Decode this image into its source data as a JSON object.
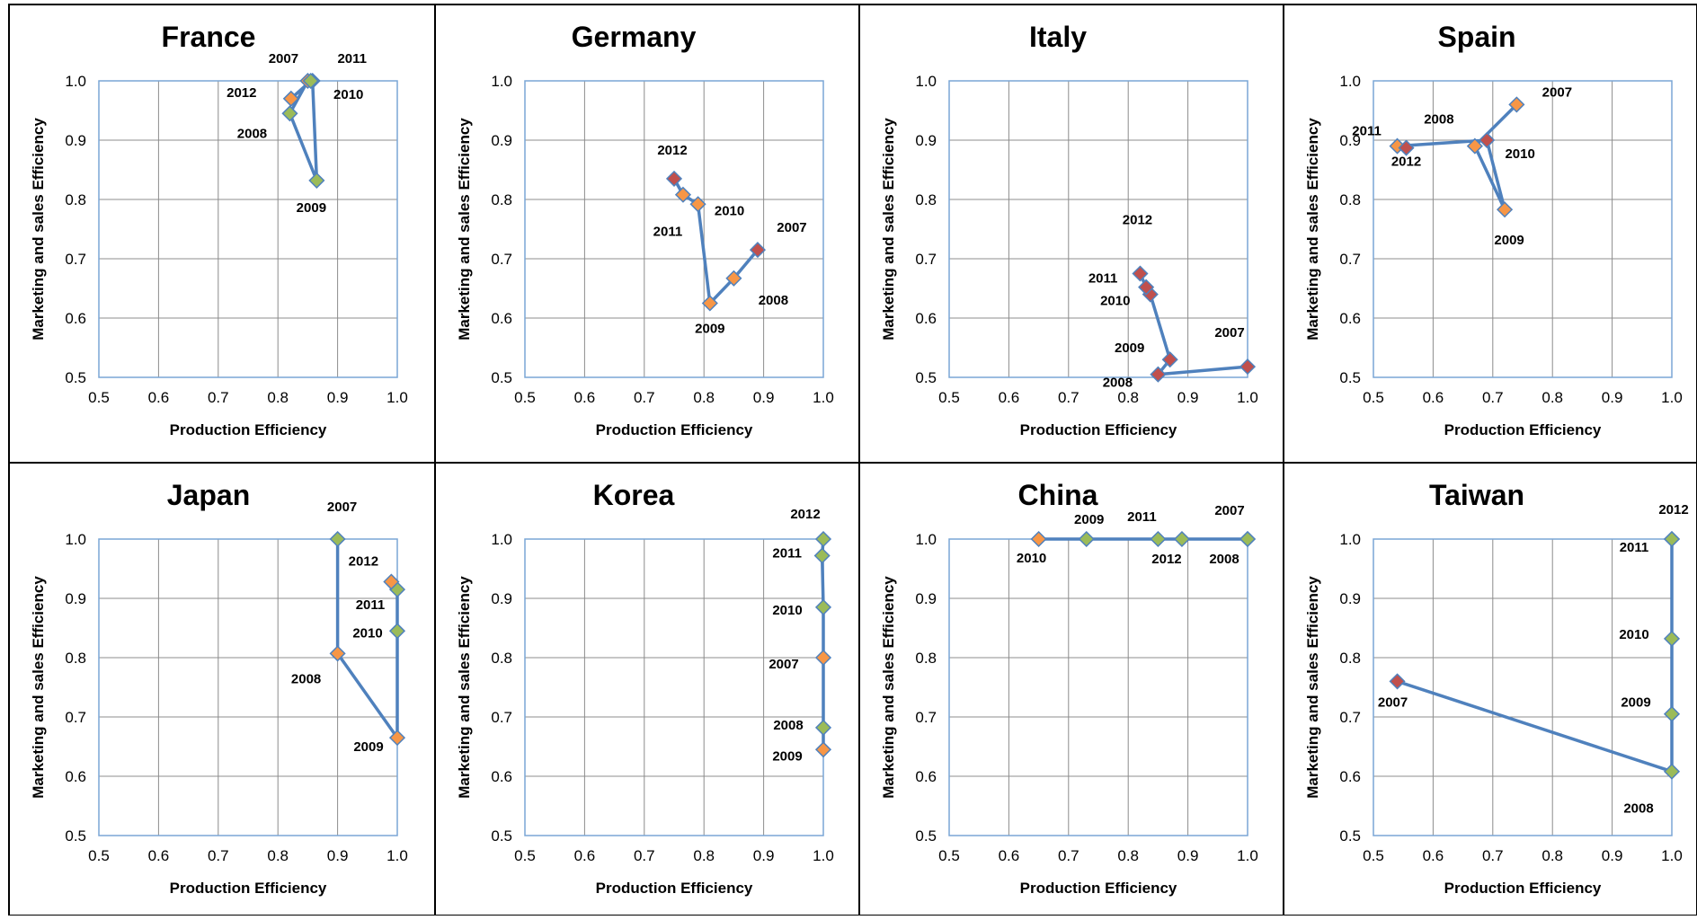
{
  "figure": {
    "xlabel": "Production Efficiency",
    "ylabel": "Marketing and sales Efficiency",
    "xticks": [
      "0.5",
      "0.6",
      "0.7",
      "0.8",
      "0.9",
      "1.0"
    ],
    "yticks": [
      "0.5",
      "0.6",
      "0.7",
      "0.8",
      "0.9",
      "1.0"
    ]
  },
  "colors": {
    "line": "#4f81bd",
    "orange": "#f79646",
    "green": "#9bbb59",
    "red": "#c0504d",
    "grid": "#8c8c8c",
    "panel_border": "#000000"
  },
  "chart_data": [
    {
      "type": "line",
      "title": "France",
      "xlabel": "Production Efficiency",
      "ylabel": "Marketing and sales Efficiency",
      "xlim": [
        0.5,
        1.0
      ],
      "ylim": [
        0.5,
        1.0
      ],
      "grid": true,
      "points": [
        {
          "year": "2007",
          "x": 0.85,
          "y": 1.0,
          "color": "orange"
        },
        {
          "year": "2008",
          "x": 0.82,
          "y": 0.945,
          "color": "green"
        },
        {
          "year": "2009",
          "x": 0.865,
          "y": 0.832,
          "color": "green"
        },
        {
          "year": "2010",
          "x": 0.858,
          "y": 1.0,
          "color": "green"
        },
        {
          "year": "2011",
          "x": 0.855,
          "y": 1.0,
          "color": "green"
        },
        {
          "year": "2012",
          "x": 0.822,
          "y": 0.97,
          "color": "orange"
        }
      ]
    },
    {
      "type": "line",
      "title": "Germany",
      "xlabel": "Production Efficiency",
      "ylabel": "Marketing and sales Efficiency",
      "xlim": [
        0.5,
        1.0
      ],
      "ylim": [
        0.5,
        1.0
      ],
      "grid": true,
      "points": [
        {
          "year": "2007",
          "x": 0.89,
          "y": 0.715,
          "color": "red"
        },
        {
          "year": "2008",
          "x": 0.85,
          "y": 0.667,
          "color": "orange"
        },
        {
          "year": "2009",
          "x": 0.81,
          "y": 0.625,
          "color": "orange"
        },
        {
          "year": "2010",
          "x": 0.79,
          "y": 0.792,
          "color": "orange"
        },
        {
          "year": "2011",
          "x": 0.765,
          "y": 0.808,
          "color": "orange"
        },
        {
          "year": "2012",
          "x": 0.75,
          "y": 0.835,
          "color": "red"
        }
      ]
    },
    {
      "type": "line",
      "title": "Italy",
      "xlabel": "Production Efficiency",
      "ylabel": "Marketing and sales Efficiency",
      "xlim": [
        0.5,
        1.0
      ],
      "ylim": [
        0.5,
        1.0
      ],
      "grid": true,
      "points": [
        {
          "year": "2007",
          "x": 1.0,
          "y": 0.518,
          "color": "red"
        },
        {
          "year": "2008",
          "x": 0.85,
          "y": 0.505,
          "color": "red"
        },
        {
          "year": "2009",
          "x": 0.87,
          "y": 0.53,
          "color": "red"
        },
        {
          "year": "2010",
          "x": 0.837,
          "y": 0.64,
          "color": "red"
        },
        {
          "year": "2011",
          "x": 0.83,
          "y": 0.652,
          "color": "red"
        },
        {
          "year": "2012",
          "x": 0.82,
          "y": 0.675,
          "color": "red"
        }
      ]
    },
    {
      "type": "line",
      "title": "Spain",
      "xlabel": "Production Efficiency",
      "ylabel": "Marketing and sales Efficiency",
      "xlim": [
        0.5,
        1.0
      ],
      "ylim": [
        0.5,
        1.0
      ],
      "grid": true,
      "points": [
        {
          "year": "2007",
          "x": 0.74,
          "y": 0.96,
          "color": "orange"
        },
        {
          "year": "2008",
          "x": 0.67,
          "y": 0.89,
          "color": "orange"
        },
        {
          "year": "2009",
          "x": 0.72,
          "y": 0.783,
          "color": "orange"
        },
        {
          "year": "2010",
          "x": 0.69,
          "y": 0.9,
          "color": "red"
        },
        {
          "year": "2011",
          "x": 0.54,
          "y": 0.89,
          "color": "orange"
        },
        {
          "year": "2012",
          "x": 0.555,
          "y": 0.887,
          "color": "red"
        }
      ]
    },
    {
      "type": "line",
      "title": "Japan",
      "xlabel": "Production Efficiency",
      "ylabel": "Marketing and sales Efficiency",
      "xlim": [
        0.5,
        1.0
      ],
      "ylim": [
        0.5,
        1.0
      ],
      "grid": true,
      "points": [
        {
          "year": "2007",
          "x": 0.9,
          "y": 1.0,
          "color": "green"
        },
        {
          "year": "2008",
          "x": 0.9,
          "y": 0.807,
          "color": "orange"
        },
        {
          "year": "2009",
          "x": 1.0,
          "y": 0.665,
          "color": "orange"
        },
        {
          "year": "2010",
          "x": 1.0,
          "y": 0.845,
          "color": "green"
        },
        {
          "year": "2011",
          "x": 1.0,
          "y": 0.915,
          "color": "green"
        },
        {
          "year": "2012",
          "x": 0.99,
          "y": 0.928,
          "color": "orange"
        }
      ]
    },
    {
      "type": "line",
      "title": "Korea",
      "xlabel": "Production Efficiency",
      "ylabel": "Marketing and sales Efficiency",
      "xlim": [
        0.5,
        1.0
      ],
      "ylim": [
        0.5,
        1.0
      ],
      "grid": true,
      "points": [
        {
          "year": "2009",
          "x": 1.0,
          "y": 0.645,
          "color": "orange"
        },
        {
          "year": "2008",
          "x": 1.0,
          "y": 0.682,
          "color": "green"
        },
        {
          "year": "2007",
          "x": 1.0,
          "y": 0.8,
          "color": "orange"
        },
        {
          "year": "2010",
          "x": 1.0,
          "y": 0.885,
          "color": "green"
        },
        {
          "year": "2011",
          "x": 0.998,
          "y": 0.972,
          "color": "green"
        },
        {
          "year": "2012",
          "x": 1.0,
          "y": 1.0,
          "color": "green"
        }
      ]
    },
    {
      "type": "line",
      "title": "China",
      "xlabel": "Production Efficiency",
      "ylabel": "Marketing and sales Efficiency",
      "xlim": [
        0.5,
        1.0
      ],
      "ylim": [
        0.5,
        1.0
      ],
      "grid": true,
      "points": [
        {
          "year": "2010",
          "x": 0.65,
          "y": 1.0,
          "color": "orange"
        },
        {
          "year": "2009",
          "x": 0.73,
          "y": 1.0,
          "color": "green"
        },
        {
          "year": "2011",
          "x": 0.85,
          "y": 1.0,
          "color": "green"
        },
        {
          "year": "2012",
          "x": 0.89,
          "y": 1.0,
          "color": "green"
        },
        {
          "year": "2008",
          "x": 1.0,
          "y": 1.0,
          "color": "green"
        },
        {
          "year": "2007",
          "x": 1.0,
          "y": 1.0,
          "color": "green"
        }
      ]
    },
    {
      "type": "line",
      "title": "Taiwan",
      "xlabel": "Production Efficiency",
      "ylabel": "Marketing and sales Efficiency",
      "xlim": [
        0.5,
        1.0
      ],
      "ylim": [
        0.5,
        1.0
      ],
      "grid": true,
      "points": [
        {
          "year": "2007",
          "x": 0.54,
          "y": 0.76,
          "color": "red"
        },
        {
          "year": "2008",
          "x": 1.0,
          "y": 0.608,
          "color": "green"
        },
        {
          "year": "2009",
          "x": 1.0,
          "y": 0.705,
          "color": "green"
        },
        {
          "year": "2010",
          "x": 1.0,
          "y": 0.832,
          "color": "green"
        },
        {
          "year": "2011",
          "x": 1.0,
          "y": 1.0,
          "color": "green"
        },
        {
          "year": "2012",
          "x": 1.0,
          "y": 1.0,
          "color": "green"
        }
      ]
    }
  ]
}
